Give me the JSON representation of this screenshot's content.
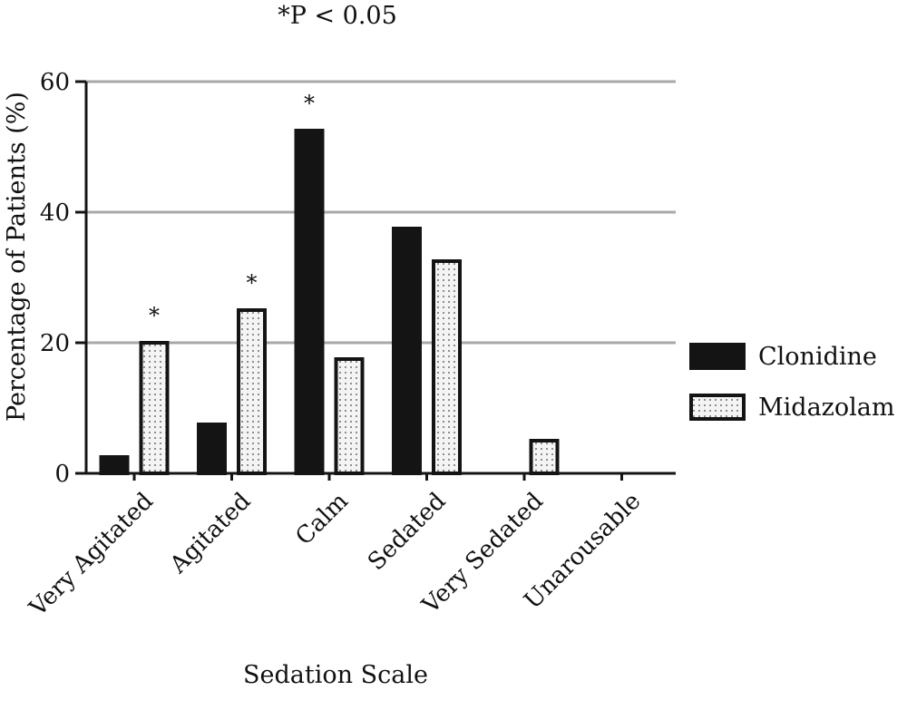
{
  "chart_data": {
    "type": "bar",
    "title": "",
    "note": "*P < 0.05",
    "xlabel": "Sedation Scale",
    "ylabel": "Percentage of Patients (%)",
    "ylim": [
      0,
      60
    ],
    "yticks": [
      0,
      20,
      40,
      60
    ],
    "grid": true,
    "legend_position": "right",
    "categories": [
      "Very Agitated",
      "Agitated",
      "Calm",
      "Sedated",
      "Very Sedated",
      "Unarousable"
    ],
    "series": [
      {
        "name": "Clonidine",
        "values": [
          2.5,
          7.5,
          52.5,
          37.5,
          0,
          0
        ],
        "fill": "solid",
        "color": "#141414"
      },
      {
        "name": "Midazolam",
        "values": [
          20,
          25,
          17.5,
          32.5,
          5,
          0
        ],
        "fill": "dotted",
        "color": "#141414"
      }
    ],
    "significance_marker": "*",
    "significant_categories": [
      "Very Agitated",
      "Agitated",
      "Calm"
    ]
  }
}
